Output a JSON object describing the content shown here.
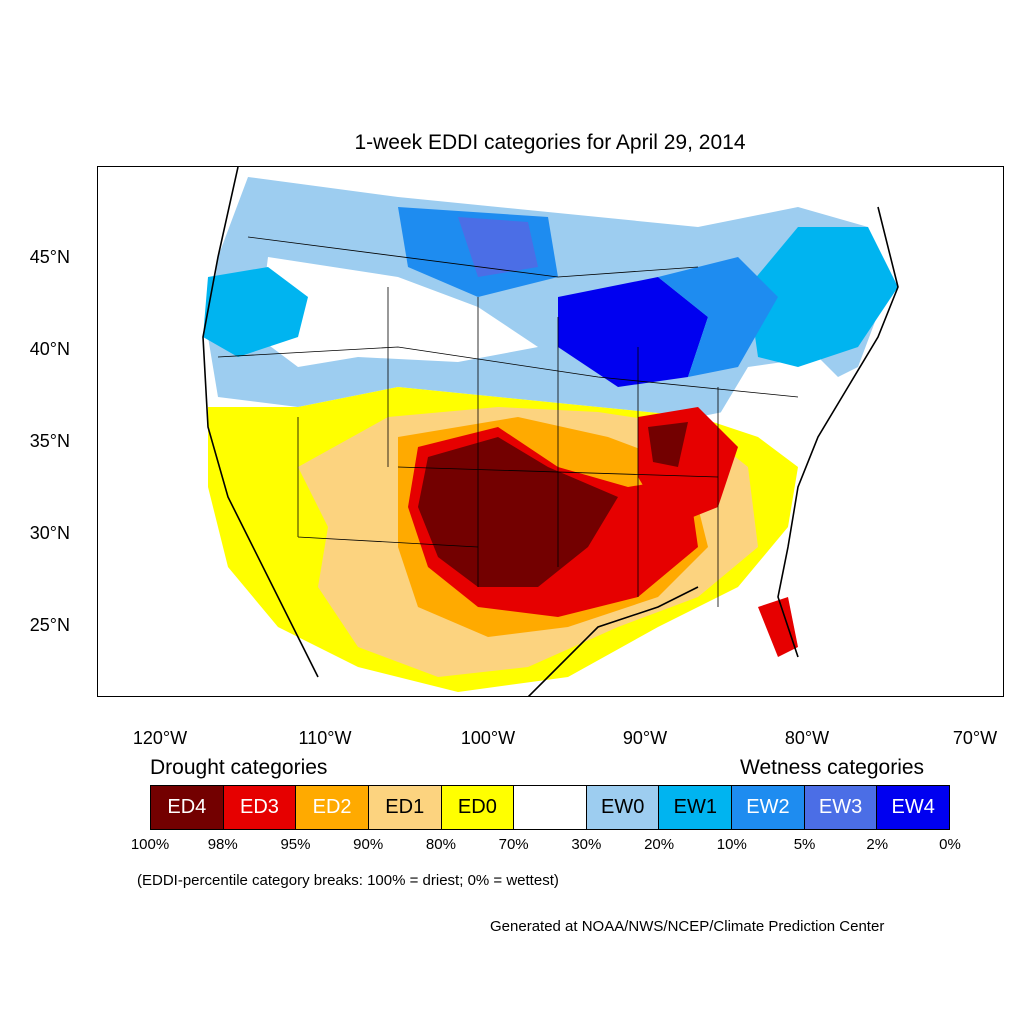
{
  "title": "1-week EDDI categories for April 29, 2014",
  "latitude_labels": [
    "45°N",
    "40°N",
    "35°N",
    "30°N",
    "25°N"
  ],
  "longitude_labels": [
    "120°W",
    "110°W",
    "100°W",
    "90°W",
    "80°W",
    "70°W"
  ],
  "legend": {
    "drought_heading": "Drought categories",
    "wetness_heading": "Wetness categories",
    "categories": [
      {
        "label": "ED4",
        "color": "#730000",
        "text_color": "#ffffff"
      },
      {
        "label": "ED3",
        "color": "#e60000",
        "text_color": "#ffffff"
      },
      {
        "label": "ED2",
        "color": "#ffaa00",
        "text_color": "#ffffff"
      },
      {
        "label": "ED1",
        "color": "#fcd37f",
        "text_color": "#000000"
      },
      {
        "label": "ED0",
        "color": "#ffff00",
        "text_color": "#000000"
      },
      {
        "label": "",
        "color": "#ffffff",
        "text_color": "#000000"
      },
      {
        "label": "EW0",
        "color": "#9dcdf0",
        "text_color": "#000000"
      },
      {
        "label": "EW1",
        "color": "#00b4f0",
        "text_color": "#000000"
      },
      {
        "label": "EW2",
        "color": "#1e8cf0",
        "text_color": "#ffffff"
      },
      {
        "label": "EW3",
        "color": "#4b6ee6",
        "text_color": "#ffffff"
      },
      {
        "label": "EW4",
        "color": "#0000f0",
        "text_color": "#ffffff"
      }
    ],
    "percentiles": [
      "100%",
      "98%",
      "95%",
      "90%",
      "80%",
      "70%",
      "30%",
      "20%",
      "10%",
      "5%",
      "2%",
      "0%"
    ]
  },
  "note": "(EDDI-percentile category breaks: 100% = driest; 0% = wettest)",
  "credit": "Generated at NOAA/NWS/NCEP/Climate Prediction Center"
}
